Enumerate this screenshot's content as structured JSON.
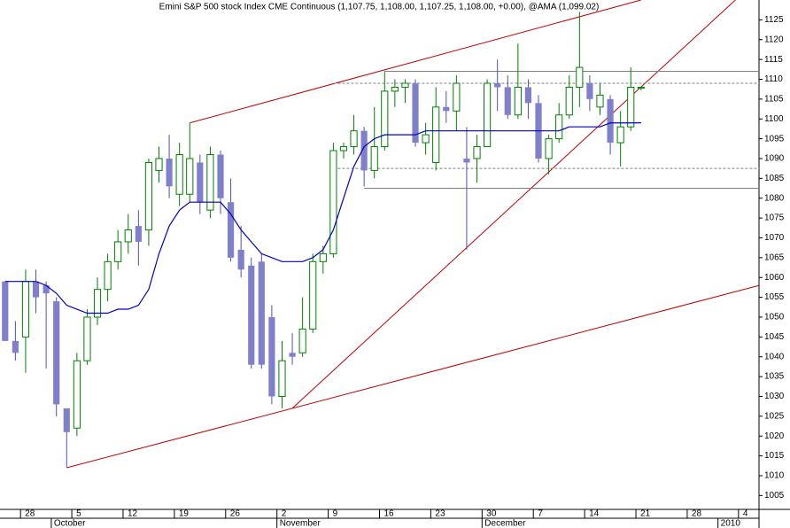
{
  "chart_data": {
    "type": "candlestick",
    "title": "Emini S&P 500 stock Index CME Continuous (1,107.75, 1,108.00, 1,107.25, 1,108.00, +0.00), @AMA (1,099.02)",
    "x": [
      0,
      1,
      2,
      3,
      4,
      5,
      6,
      7,
      8,
      9,
      10,
      11,
      12,
      13,
      14,
      15,
      16,
      17,
      18,
      19,
      20,
      21,
      22,
      23,
      24,
      25,
      26,
      27,
      28,
      29,
      30,
      31,
      32,
      33,
      34,
      35,
      36,
      37,
      38,
      39,
      40,
      41,
      42,
      43,
      44,
      45,
      46,
      47,
      48,
      49,
      50,
      51,
      52,
      53,
      54,
      55,
      56,
      57,
      58,
      59,
      60,
      61,
      62
    ],
    "open": [
      1059,
      1044,
      1045,
      1059,
      1058,
      1054,
      1027,
      1022,
      1039,
      1050,
      1057,
      1064,
      1069,
      1073,
      1072,
      1087,
      1090,
      1081,
      1081,
      1089,
      1077,
      1091,
      1079,
      1067,
      1063,
      1064,
      1050,
      1030,
      1041,
      1041,
      1047,
      1064,
      1066,
      1092,
      1093,
      1097,
      1087,
      1093,
      1107,
      1108,
      1109,
      1094,
      1089,
      1103,
      1102,
      1090,
      1090,
      1093,
      1109,
      1108,
      1101,
      1108,
      1104,
      1090,
      1095,
      1101,
      1108,
      1109,
      1103,
      1105,
      1094,
      1098,
      1107.75
    ],
    "high": [
      1059,
      1049,
      1062,
      1062,
      1059,
      1055,
      1027,
      1041,
      1052,
      1060,
      1066,
      1072,
      1076,
      1077,
      1090,
      1093,
      1096,
      1094,
      1099,
      1091,
      1093,
      1092,
      1085,
      1073,
      1065,
      1066,
      1053,
      1044,
      1046,
      1055,
      1066,
      1068,
      1094,
      1094,
      1101,
      1098,
      1103,
      1112,
      1110,
      1110,
      1110,
      1099,
      1108,
      1107,
      1111,
      1098,
      1096,
      1110,
      1115,
      1111,
      1119,
      1110,
      1106,
      1096,
      1104,
      1111,
      1127,
      1111,
      1109,
      1106,
      1102,
      1113,
      1108
    ],
    "low": [
      1044,
      1039,
      1036,
      1051,
      1037,
      1025,
      1012,
      1020,
      1038,
      1048,
      1054,
      1062,
      1066,
      1063,
      1068,
      1084,
      1080,
      1078,
      1079,
      1076,
      1075,
      1076,
      1064,
      1060,
      1037,
      1037,
      1028,
      1027,
      1038,
      1040,
      1046,
      1061,
      1065,
      1090,
      1091,
      1083,
      1085,
      1092,
      1103,
      1104,
      1093,
      1091,
      1087,
      1099,
      1097,
      1067,
      1084,
      1093,
      1102,
      1100,
      1100,
      1100,
      1089,
      1086,
      1094,
      1100,
      1103,
      1102,
      1101,
      1091,
      1088,
      1097,
      1107.25
    ],
    "close": [
      1044,
      1041,
      1059,
      1055,
      1056,
      1028,
      1021,
      1039,
      1050,
      1057,
      1064,
      1069,
      1072,
      1069,
      1089,
      1090,
      1083,
      1091,
      1090,
      1079,
      1091,
      1080,
      1065,
      1062,
      1038,
      1038,
      1030,
      1039,
      1040,
      1047,
      1064,
      1066,
      1092,
      1093,
      1097,
      1087,
      1093,
      1107,
      1108,
      1109,
      1094,
      1096,
      1103,
      1102,
      1109,
      1089,
      1093,
      1109,
      1108,
      1101,
      1108,
      1104,
      1090,
      1095,
      1101,
      1108,
      1113,
      1105,
      1106,
      1094,
      1098,
      1108,
      1108
    ],
    "up_color": "#008000",
    "down_color": "#7f7fcc",
    "series": [
      {
        "name": "AMA",
        "color": "#0000c0",
        "values": [
          1059,
          1059,
          1059,
          1059,
          1058,
          1056,
          1053,
          1052,
          1051,
          1051,
          1051,
          1052,
          1052,
          1053,
          1057,
          1066,
          1073,
          1077,
          1079,
          1079,
          1079,
          1079,
          1076,
          1072,
          1069,
          1066,
          1065,
          1064,
          1064,
          1064,
          1065,
          1067,
          1072,
          1080,
          1088,
          1093,
          1095,
          1096,
          1096,
          1096,
          1096,
          1097,
          1097,
          1097,
          1097,
          1097,
          1097,
          1097,
          1097,
          1097,
          1097,
          1097,
          1097,
          1097,
          1097,
          1098,
          1098,
          1098,
          1098,
          1099,
          1099,
          1099,
          1099.02
        ]
      }
    ],
    "trendlines": [
      {
        "color": "#c00000",
        "x": [
          18,
          62
        ],
        "y": [
          1099,
          1130
        ],
        "dashed": false
      },
      {
        "color": "#c00000",
        "x": [
          6,
          73.5
        ],
        "y": [
          1012,
          1058
        ],
        "dashed": false
      },
      {
        "color": "#c00000",
        "x": [
          28,
          71.2
        ],
        "y": [
          1027,
          1130
        ],
        "dashed": false
      },
      {
        "color": "#808080",
        "x": [
          37,
          73.5
        ],
        "y": [
          1112,
          1112
        ],
        "dashed": false
      },
      {
        "color": "#808080",
        "x": [
          32,
          73.5
        ],
        "y": [
          1109,
          1109
        ],
        "dashed": true
      },
      {
        "color": "#808080",
        "x": [
          32,
          73.5
        ],
        "y": [
          1087.5,
          1087.5
        ],
        "dashed": true
      },
      {
        "color": "#808080",
        "x": [
          35,
          73.5
        ],
        "y": [
          1082.5,
          1082.5
        ],
        "dashed": false
      }
    ],
    "xlim": [
      -0.5,
      73.5
    ],
    "xticks": [
      {
        "value": 1.5,
        "label": "28"
      },
      {
        "value": 6.5,
        "label": "5"
      },
      {
        "value": 11.5,
        "label": "12"
      },
      {
        "value": 16.5,
        "label": "19"
      },
      {
        "value": 21.5,
        "label": "26"
      },
      {
        "value": 26.5,
        "label": "2"
      },
      {
        "value": 31.5,
        "label": "9"
      },
      {
        "value": 36.5,
        "label": "16"
      },
      {
        "value": 41.5,
        "label": "23"
      },
      {
        "value": 46.5,
        "label": "30"
      },
      {
        "value": 51.5,
        "label": "7"
      },
      {
        "value": 56.5,
        "label": "14"
      },
      {
        "value": 61.5,
        "label": "21"
      },
      {
        "value": 66.5,
        "label": "28"
      },
      {
        "value": 71.5,
        "label": "4"
      }
    ],
    "months": [
      {
        "value": 4.5,
        "label": "October"
      },
      {
        "value": 26.5,
        "label": "November"
      },
      {
        "value": 46.5,
        "label": "December"
      },
      {
        "value": 69.5,
        "label": "2010"
      }
    ],
    "ylim": [
      1001.5,
      1130
    ],
    "yticks": [
      1005,
      1010,
      1015,
      1020,
      1025,
      1030,
      1035,
      1040,
      1045,
      1050,
      1055,
      1060,
      1065,
      1070,
      1075,
      1080,
      1085,
      1090,
      1095,
      1100,
      1105,
      1110,
      1115,
      1120,
      1125
    ]
  }
}
